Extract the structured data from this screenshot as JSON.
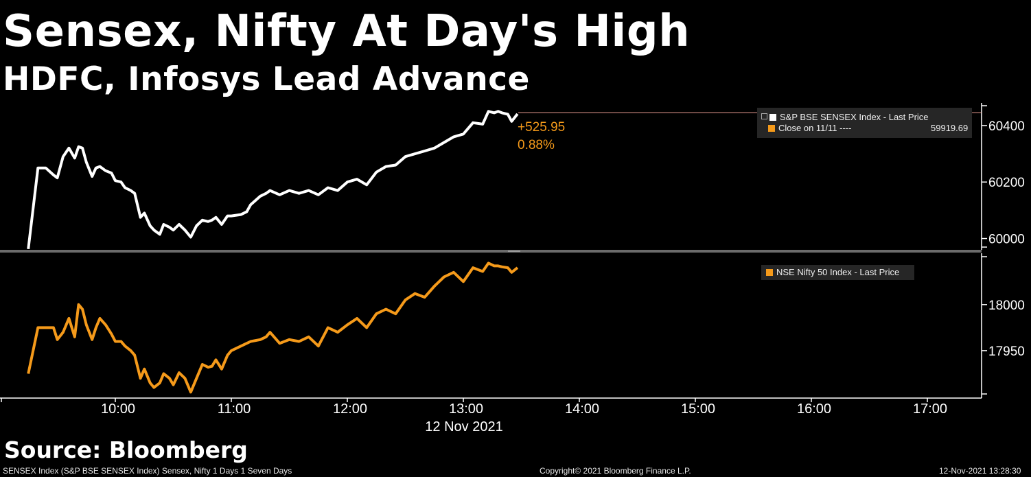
{
  "header": {
    "title": "Sensex, Nifty At Day's High",
    "subtitle": "HDFC, Infosys Lead Advance"
  },
  "source_label": "Source: Bloomberg",
  "footer": {
    "left": "SENSEX Index (S&P BSE SENSEX Index) Sensex, Nifty 1 Days 1 Seven Days",
    "center": "Copyright© 2021 Bloomberg Finance L.P.",
    "right": "12-Nov-2021 13:28:30"
  },
  "colors": {
    "background": "#000000",
    "sensex_line": "#ffffff",
    "nifty_line": "#f59a1a",
    "annotation": "#f59a1a",
    "close_line": "#e89b8f",
    "legend_bg": "#262626"
  },
  "legend": {
    "sensex": {
      "label": "S&P BSE SENSEX Index - Last Price"
    },
    "close": {
      "label": "Close on 11/11 ----",
      "value": "59919.69"
    },
    "nifty": {
      "label": "NSE Nifty 50 Index - Last Price"
    }
  },
  "annotation": {
    "change": "+525.95",
    "pct": "0.88%"
  },
  "chart_data": {
    "type": "line",
    "date_label": "12 Nov 2021",
    "x_ticks": [
      "10:00",
      "11:00",
      "12:00",
      "13:00",
      "14:00",
      "15:00",
      "16:00",
      "17:00"
    ],
    "x_range": [
      "09:15",
      "17:30"
    ],
    "panels": [
      {
        "name": "sensex",
        "y_ticks": [
          60000,
          60200,
          60400
        ],
        "ylim": [
          59960,
          60480
        ],
        "reference_line": 60445.64,
        "series": [
          {
            "name": "S&P BSE SENSEX Index - Last Price",
            "color": "#ffffff",
            "x": [
              "09:15",
              "09:20",
              "09:24",
              "09:28",
              "09:30",
              "09:33",
              "09:36",
              "09:39",
              "09:41",
              "09:43",
              "09:45",
              "09:48",
              "09:50",
              "09:52",
              "09:55",
              "09:58",
              "10:00",
              "10:03",
              "10:05",
              "10:08",
              "10:10",
              "10:13",
              "10:15",
              "10:18",
              "10:20",
              "10:23",
              "10:25",
              "10:28",
              "10:30",
              "10:33",
              "10:36",
              "10:39",
              "10:42",
              "10:45",
              "10:48",
              "10:50",
              "10:52",
              "10:55",
              "10:58",
              "11:00",
              "11:05",
              "11:08",
              "11:10",
              "11:15",
              "11:18",
              "11:20",
              "11:25",
              "11:30",
              "11:35",
              "11:40",
              "11:45",
              "11:50",
              "11:55",
              "12:00",
              "12:05",
              "12:10",
              "12:15",
              "12:20",
              "12:25",
              "12:30",
              "12:35",
              "12:40",
              "12:45",
              "12:50",
              "12:55",
              "13:00",
              "13:05",
              "13:10",
              "13:13",
              "13:16",
              "13:18",
              "13:20",
              "13:23",
              "13:25",
              "13:28"
            ],
            "y": [
              59963,
              60250,
              60250,
              60225,
              60215,
              60290,
              60320,
              60285,
              60325,
              60320,
              60270,
              60220,
              60250,
              60255,
              60240,
              60232,
              60205,
              60200,
              60180,
              60170,
              60160,
              60075,
              60090,
              60045,
              60030,
              60015,
              60050,
              60040,
              60030,
              60050,
              60030,
              60005,
              60045,
              60065,
              60060,
              60065,
              60075,
              60050,
              60080,
              60080,
              60085,
              60095,
              60120,
              60150,
              60160,
              60170,
              60155,
              60170,
              60160,
              60170,
              60155,
              60180,
              60170,
              60200,
              60210,
              60190,
              60235,
              60255,
              60260,
              60290,
              60300,
              60310,
              60320,
              60340,
              60360,
              60370,
              60410,
              60405,
              60450,
              60445,
              60450,
              60445,
              60440,
              60415,
              60441
            ]
          }
        ]
      },
      {
        "name": "nifty",
        "y_ticks": [
          17950,
          18000
        ],
        "ylim": [
          17900,
          18055
        ],
        "series": [
          {
            "name": "NSE Nifty 50 Index - Last Price",
            "color": "#f59a1a",
            "x": [
              "09:15",
              "09:20",
              "09:24",
              "09:28",
              "09:30",
              "09:33",
              "09:36",
              "09:39",
              "09:41",
              "09:43",
              "09:45",
              "09:48",
              "09:50",
              "09:52",
              "09:55",
              "09:58",
              "10:00",
              "10:03",
              "10:05",
              "10:08",
              "10:10",
              "10:13",
              "10:15",
              "10:18",
              "10:20",
              "10:23",
              "10:25",
              "10:28",
              "10:30",
              "10:33",
              "10:36",
              "10:39",
              "10:42",
              "10:45",
              "10:48",
              "10:50",
              "10:52",
              "10:55",
              "10:58",
              "11:00",
              "11:05",
              "11:08",
              "11:10",
              "11:15",
              "11:18",
              "11:20",
              "11:25",
              "11:30",
              "11:35",
              "11:40",
              "11:45",
              "11:50",
              "11:55",
              "12:00",
              "12:05",
              "12:10",
              "12:15",
              "12:20",
              "12:25",
              "12:30",
              "12:35",
              "12:40",
              "12:45",
              "12:50",
              "12:55",
              "13:00",
              "13:05",
              "13:10",
              "13:13",
              "13:16",
              "13:18",
              "13:20",
              "13:23",
              "13:25",
              "13:28"
            ],
            "y": [
              17925,
              17975,
              17975,
              17975,
              17962,
              17970,
              17985,
              17965,
              18000,
              17995,
              17978,
              17962,
              17975,
              17985,
              17978,
              17968,
              17960,
              17960,
              17955,
              17950,
              17945,
              17920,
              17930,
              17915,
              17910,
              17915,
              17925,
              17920,
              17913,
              17926,
              17920,
              17905,
              17920,
              17935,
              17932,
              17933,
              17940,
              17930,
              17945,
              17950,
              17955,
              17958,
              17960,
              17962,
              17965,
              17970,
              17958,
              17962,
              17960,
              17965,
              17955,
              17975,
              17970,
              17978,
              17985,
              17975,
              17990,
              17995,
              17990,
              18005,
              18012,
              18008,
              18020,
              18030,
              18035,
              18025,
              18040,
              18036,
              18045,
              18042,
              18042,
              18041,
              18040,
              18035,
              18040
            ]
          }
        ]
      }
    ]
  }
}
